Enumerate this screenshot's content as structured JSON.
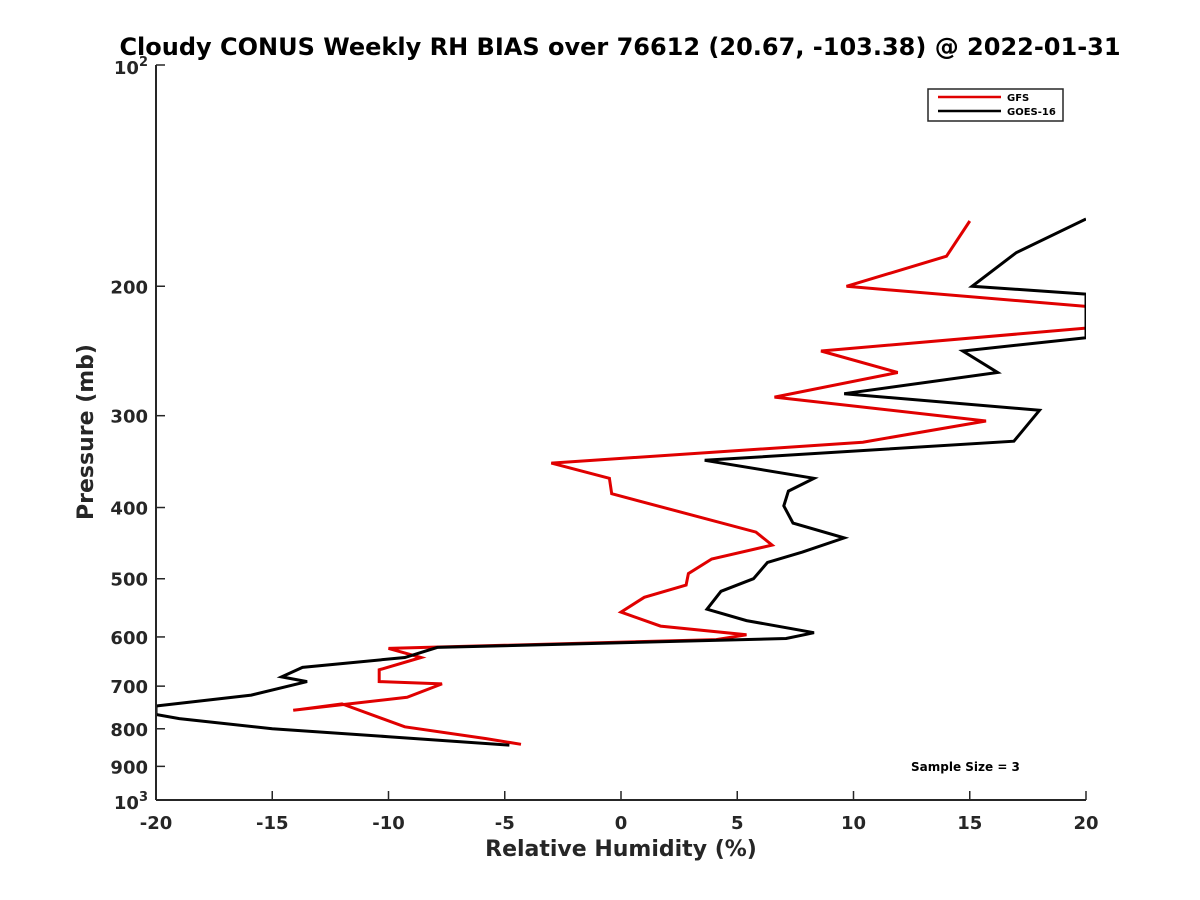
{
  "chart_data": {
    "type": "line",
    "title": "Cloudy CONUS Weekly RH BIAS over 76612 (20.67, -103.38) @ 2022-01-31",
    "xlabel": "Relative Humidity (%)",
    "ylabel": "Pressure (mb)",
    "xlim": [
      -20,
      20
    ],
    "ylim": [
      100,
      1000
    ],
    "yscale": "log",
    "y_reversed": true,
    "x_ticks": [
      -20,
      -15,
      -10,
      -5,
      0,
      5,
      10,
      15,
      20
    ],
    "x_tick_labels": [
      "-20",
      "-15",
      "-10",
      "-5",
      "0",
      "5",
      "10",
      "15",
      "20"
    ],
    "y_ticks": [
      {
        "value": 100,
        "base": "10",
        "exp": "2"
      },
      {
        "value": 200,
        "label": "200"
      },
      {
        "value": 300,
        "label": "300"
      },
      {
        "value": 400,
        "label": "400"
      },
      {
        "value": 500,
        "label": "500"
      },
      {
        "value": 600,
        "label": "600"
      },
      {
        "value": 700,
        "label": "700"
      },
      {
        "value": 800,
        "label": "800"
      },
      {
        "value": 900,
        "label": "900"
      },
      {
        "value": 1000,
        "base": "10",
        "exp": "3"
      }
    ],
    "legend_position": "top-right",
    "series": [
      {
        "name": "GFS",
        "color": "#e00000",
        "x": [
          15.0,
          14.0,
          9.7,
          20.0,
          20.0,
          20.0,
          8.6,
          11.9,
          6.6,
          15.7,
          10.4,
          -3.0,
          -0.5,
          -0.4,
          5.8,
          6.5,
          3.9,
          2.9,
          2.8,
          1.0,
          0.0,
          1.7,
          5.4,
          4.1,
          -10.0,
          -8.6,
          -10.4,
          -10.4,
          -7.7,
          -9.2,
          -14.1,
          -12.0,
          -9.3,
          -5.8,
          -4.3
        ],
        "y": [
          163,
          182,
          200,
          213,
          220,
          228,
          245,
          262,
          283,
          305,
          326,
          348,
          365,
          383,
          432,
          450,
          470,
          492,
          510,
          530,
          555,
          580,
          596,
          605,
          622,
          640,
          665,
          690,
          695,
          725,
          755,
          740,
          795,
          825,
          840
        ]
      },
      {
        "name": "GOES-16",
        "color": "#000000",
        "x": [
          20.0,
          17.0,
          15.1,
          20.0,
          20.0,
          20.0,
          14.7,
          16.2,
          9.6,
          18.0,
          16.9,
          3.6,
          8.3,
          7.2,
          7.0,
          7.4,
          9.6,
          7.8,
          6.3,
          5.7,
          4.3,
          3.7,
          5.4,
          8.3,
          7.1,
          -7.9,
          -9.3,
          -13.7,
          -14.6,
          -13.5,
          -15.9,
          -20.0,
          -20.0,
          -19.0,
          -15.0,
          -10.0,
          -4.8
        ],
        "y": [
          162,
          180,
          200,
          205,
          210,
          235,
          245,
          262,
          280,
          295,
          325,
          345,
          365,
          380,
          398,
          420,
          440,
          460,
          475,
          500,
          520,
          550,
          570,
          592,
          603,
          620,
          640,
          660,
          680,
          690,
          720,
          745,
          765,
          775,
          800,
          820,
          842
        ]
      }
    ],
    "annotations": [
      {
        "text": "Sample Size = 3"
      }
    ]
  }
}
